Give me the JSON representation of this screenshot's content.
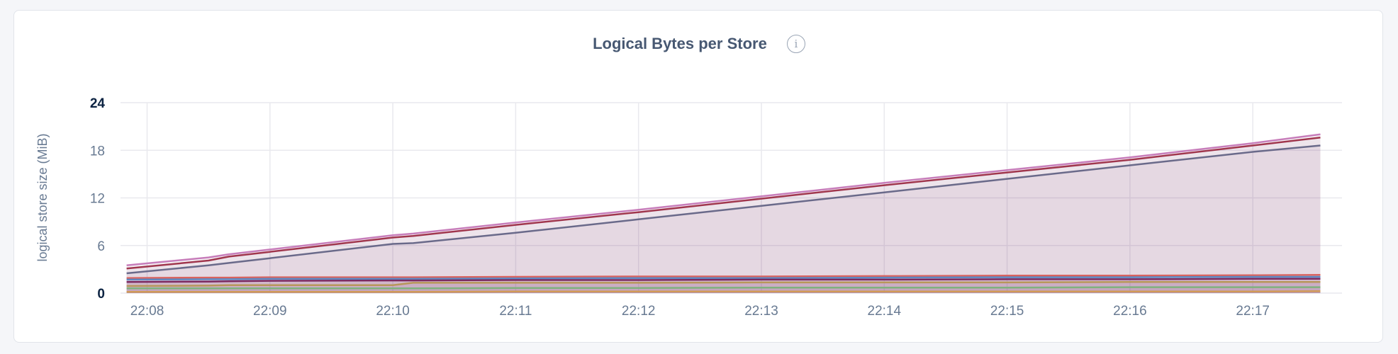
{
  "chart_data": {
    "type": "area",
    "title": "Logical Bytes per Store",
    "ylabel": "logical store size (MiB)",
    "xlabel": "",
    "ylim": [
      0,
      24
    ],
    "yticks": [
      "0",
      "6",
      "12",
      "18",
      "24"
    ],
    "xticks": [
      "22:08",
      "22:09",
      "22:10",
      "22:11",
      "22:12",
      "22:13",
      "22:14",
      "22:15",
      "22:16",
      "22:17"
    ],
    "grid": true,
    "x": [
      "22:07:50",
      "22:08:30",
      "22:08:40",
      "22:09:00",
      "22:10:00",
      "22:10:10",
      "22:11:00",
      "22:12:00",
      "22:13:00",
      "22:14:00",
      "22:15:00",
      "22:16:00",
      "22:17:00",
      "22:17:33"
    ],
    "series": [
      {
        "color": "#c77dba",
        "values": [
          3.5,
          4.5,
          4.9,
          5.5,
          7.3,
          7.5,
          8.9,
          10.5,
          12.2,
          13.9,
          15.5,
          17.1,
          18.9,
          20.0
        ]
      },
      {
        "color": "#a0364d",
        "values": [
          3.1,
          4.1,
          4.6,
          5.2,
          7.0,
          7.2,
          8.6,
          10.2,
          11.9,
          13.6,
          15.2,
          16.8,
          18.6,
          19.6
        ]
      },
      {
        "color": "#6a6a8a",
        "values": [
          2.5,
          3.5,
          3.8,
          4.4,
          6.2,
          6.3,
          7.6,
          9.3,
          11.0,
          12.7,
          14.4,
          16.1,
          17.8,
          18.6
        ]
      },
      {
        "color": "#d9635f",
        "values": [
          1.9,
          1.95,
          1.95,
          2.0,
          2.0,
          2.0,
          2.05,
          2.1,
          2.1,
          2.15,
          2.2,
          2.2,
          2.25,
          2.3
        ]
      },
      {
        "color": "#5e88c2",
        "values": [
          1.7,
          1.75,
          1.75,
          1.8,
          1.8,
          1.8,
          1.85,
          1.9,
          1.9,
          1.95,
          2.0,
          2.0,
          2.05,
          2.05
        ]
      },
      {
        "color": "#7b2a60",
        "values": [
          1.4,
          1.45,
          1.5,
          1.55,
          1.6,
          1.6,
          1.65,
          1.65,
          1.7,
          1.7,
          1.75,
          1.75,
          1.8,
          1.8
        ]
      },
      {
        "color": "#b8975a",
        "values": [
          0.9,
          0.95,
          1.0,
          1.0,
          1.0,
          1.3,
          1.3,
          1.3,
          1.35,
          1.35,
          1.35,
          1.4,
          1.4,
          1.4
        ]
      },
      {
        "color": "#7fb27f",
        "values": [
          0.6,
          0.6,
          0.6,
          0.6,
          0.6,
          0.6,
          0.65,
          0.65,
          0.7,
          0.7,
          0.7,
          0.75,
          0.75,
          0.75
        ]
      },
      {
        "color": "#d19a57",
        "values": [
          0.15,
          0.15,
          0.15,
          0.15,
          0.15,
          0.15,
          0.2,
          0.2,
          0.2,
          0.2,
          0.2,
          0.2,
          0.2,
          0.25
        ]
      }
    ]
  },
  "info_icon": "info-icon"
}
